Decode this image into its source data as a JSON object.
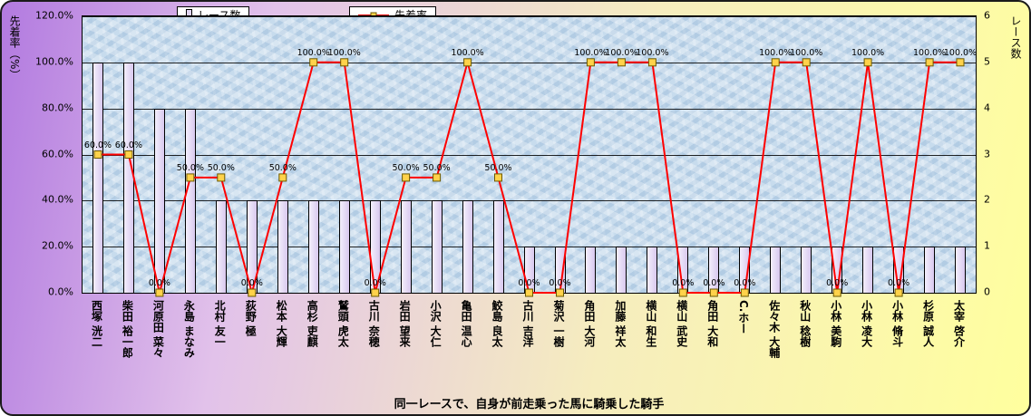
{
  "chart_data": {
    "type": "bar",
    "title": "同一レースで、自身が前走乗った馬に騎乗した騎手",
    "categories": [
      "西塚 洸二",
      "柴田 裕一郎",
      "河原田 菜々",
      "永島 まなみ",
      "北村 友一",
      "荻野 極",
      "松本 大輝",
      "高杉 吏麒",
      "鷲頭 虎太",
      "古川 奈穂",
      "岩田 望来",
      "小沢 大仁",
      "亀田 温心",
      "鮫島 良太",
      "古川 吉洋",
      "菊沢 一樹",
      "角田 大河",
      "加藤 祥太",
      "横山 和生",
      "横山 武史",
      "角田 大和",
      "C.ホー",
      "佐々木 大輔",
      "秋山 稔樹",
      "小林 美駒",
      "小林 凌大",
      "小林 脩斗",
      "杉原 誠人",
      "太宰 啓介"
    ],
    "series": [
      {
        "name": "レース数",
        "type": "bar",
        "axis": "right",
        "values": [
          5,
          5,
          4,
          4,
          2,
          2,
          2,
          2,
          2,
          2,
          2,
          2,
          2,
          2,
          1,
          1,
          1,
          1,
          1,
          1,
          1,
          1,
          1,
          1,
          1,
          1,
          1,
          1,
          1
        ]
      },
      {
        "name": "先着率",
        "type": "line",
        "axis": "left",
        "values": [
          60,
          60,
          0,
          50,
          50,
          0,
          50,
          100,
          100,
          0,
          50,
          50,
          100,
          50,
          0,
          0,
          100,
          100,
          100,
          0,
          0,
          0,
          100,
          100,
          0,
          100,
          0,
          100,
          100
        ],
        "labels": [
          "60.0%",
          "60.0%",
          "0.0%",
          "50.0%",
          "50.0%",
          "0.0%",
          "50.0%",
          "100.0%",
          "100.0%",
          "0.0%",
          "50.0%",
          "50.0%",
          "100.0%",
          "50.0%",
          "0.0%",
          "0.0%",
          "100.0%",
          "100.0%",
          "100.0%",
          "0.0%",
          "0.0%",
          "0.0%",
          "100.0%",
          "100.0%",
          "0.0%",
          "100.0%",
          "0.0%",
          "100.0%",
          "100.0%"
        ]
      }
    ],
    "left_axis": {
      "label": "先着率（%）",
      "min": 0,
      "max": 120,
      "ticks": [
        "0.0%",
        "20.0%",
        "40.0%",
        "60.0%",
        "80.0%",
        "100.0%",
        "120.0%"
      ]
    },
    "right_axis": {
      "label": "レース数",
      "min": 0,
      "max": 6,
      "ticks": [
        "0",
        "1",
        "2",
        "3",
        "4",
        "5",
        "6"
      ]
    },
    "legend_position": "top",
    "grid": true,
    "colors": {
      "bar_fill": "#e0d4f2",
      "bar_border": "#000000",
      "line": "#ff0000",
      "marker_fill": "#ffd24a",
      "marker_border": "#6b5900",
      "plot_bg": "#c9ddee"
    }
  }
}
